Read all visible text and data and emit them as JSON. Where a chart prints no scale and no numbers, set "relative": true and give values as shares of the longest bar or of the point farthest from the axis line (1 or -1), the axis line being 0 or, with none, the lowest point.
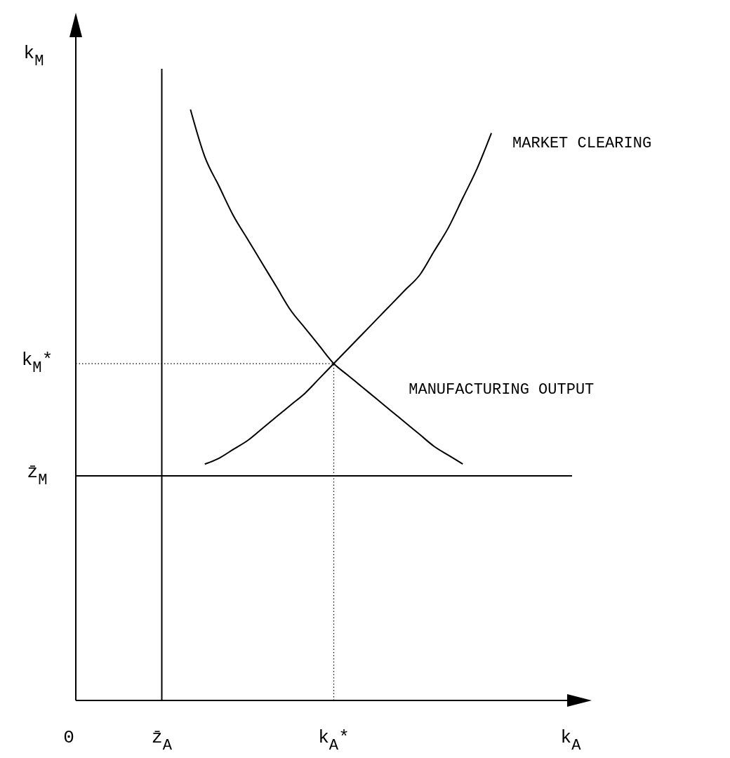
{
  "chart_data": {
    "type": "line",
    "relative": true,
    "xlabel": "k$_{A}$",
    "ylabel": "k$_{M}$",
    "categories": [
      "0",
      null,
      null,
      null,
      null,
      null,
      "z̄$_{A}$",
      null,
      null,
      null,
      null,
      null,
      null,
      null,
      null,
      null,
      null,
      null,
      "k$_{A}$*",
      null,
      null,
      null,
      null,
      null,
      null,
      null,
      null,
      null,
      null,
      null,
      null,
      null,
      null,
      null,
      null,
      null,
      null
    ],
    "series": [
      {
        "name": "MARKET CLEARING",
        "color": "#000000",
        "values": [
          null,
          null,
          null,
          null,
          null,
          null,
          null,
          null,
          null,
          0.4,
          0.41,
          0.425,
          0.44,
          0.46,
          0.48,
          0.5,
          0.52,
          0.545,
          0.57,
          0.595,
          0.62,
          0.645,
          0.67,
          0.695,
          0.72,
          0.76,
          0.8,
          0.85,
          0.9,
          0.96,
          null,
          null,
          null,
          null,
          null,
          null,
          null
        ]
      },
      {
        "name": "MANUFACTURING OUTPUT",
        "color": "#000000",
        "values": [
          null,
          null,
          null,
          null,
          null,
          null,
          null,
          null,
          1,
          0.92,
          0.87,
          0.82,
          0.78,
          0.74,
          0.7,
          0.66,
          0.63,
          0.6,
          0.57,
          0.55,
          0.53,
          0.51,
          0.49,
          0.47,
          0.45,
          0.43,
          0.415,
          0.4,
          null,
          null,
          null,
          null,
          null,
          null,
          null,
          null,
          null
        ]
      }
    ],
    "ref_lines": [
      {
        "axis": "y",
        "value": 0.57,
        "label": "k$_{M}$*",
        "line_style": "dotted",
        "color": "#000000"
      },
      {
        "axis": "y",
        "value": 0.38,
        "label": "z̄$_{M}$",
        "line_style": "solid",
        "color": "#000000"
      },
      {
        "axis": "x",
        "value": "z̄$_{A}$",
        "line_style": "solid",
        "color": "#000000"
      },
      {
        "axis": "x",
        "value": "k$_{A}$*",
        "line_style": "dotted",
        "color": "#000000"
      }
    ]
  }
}
